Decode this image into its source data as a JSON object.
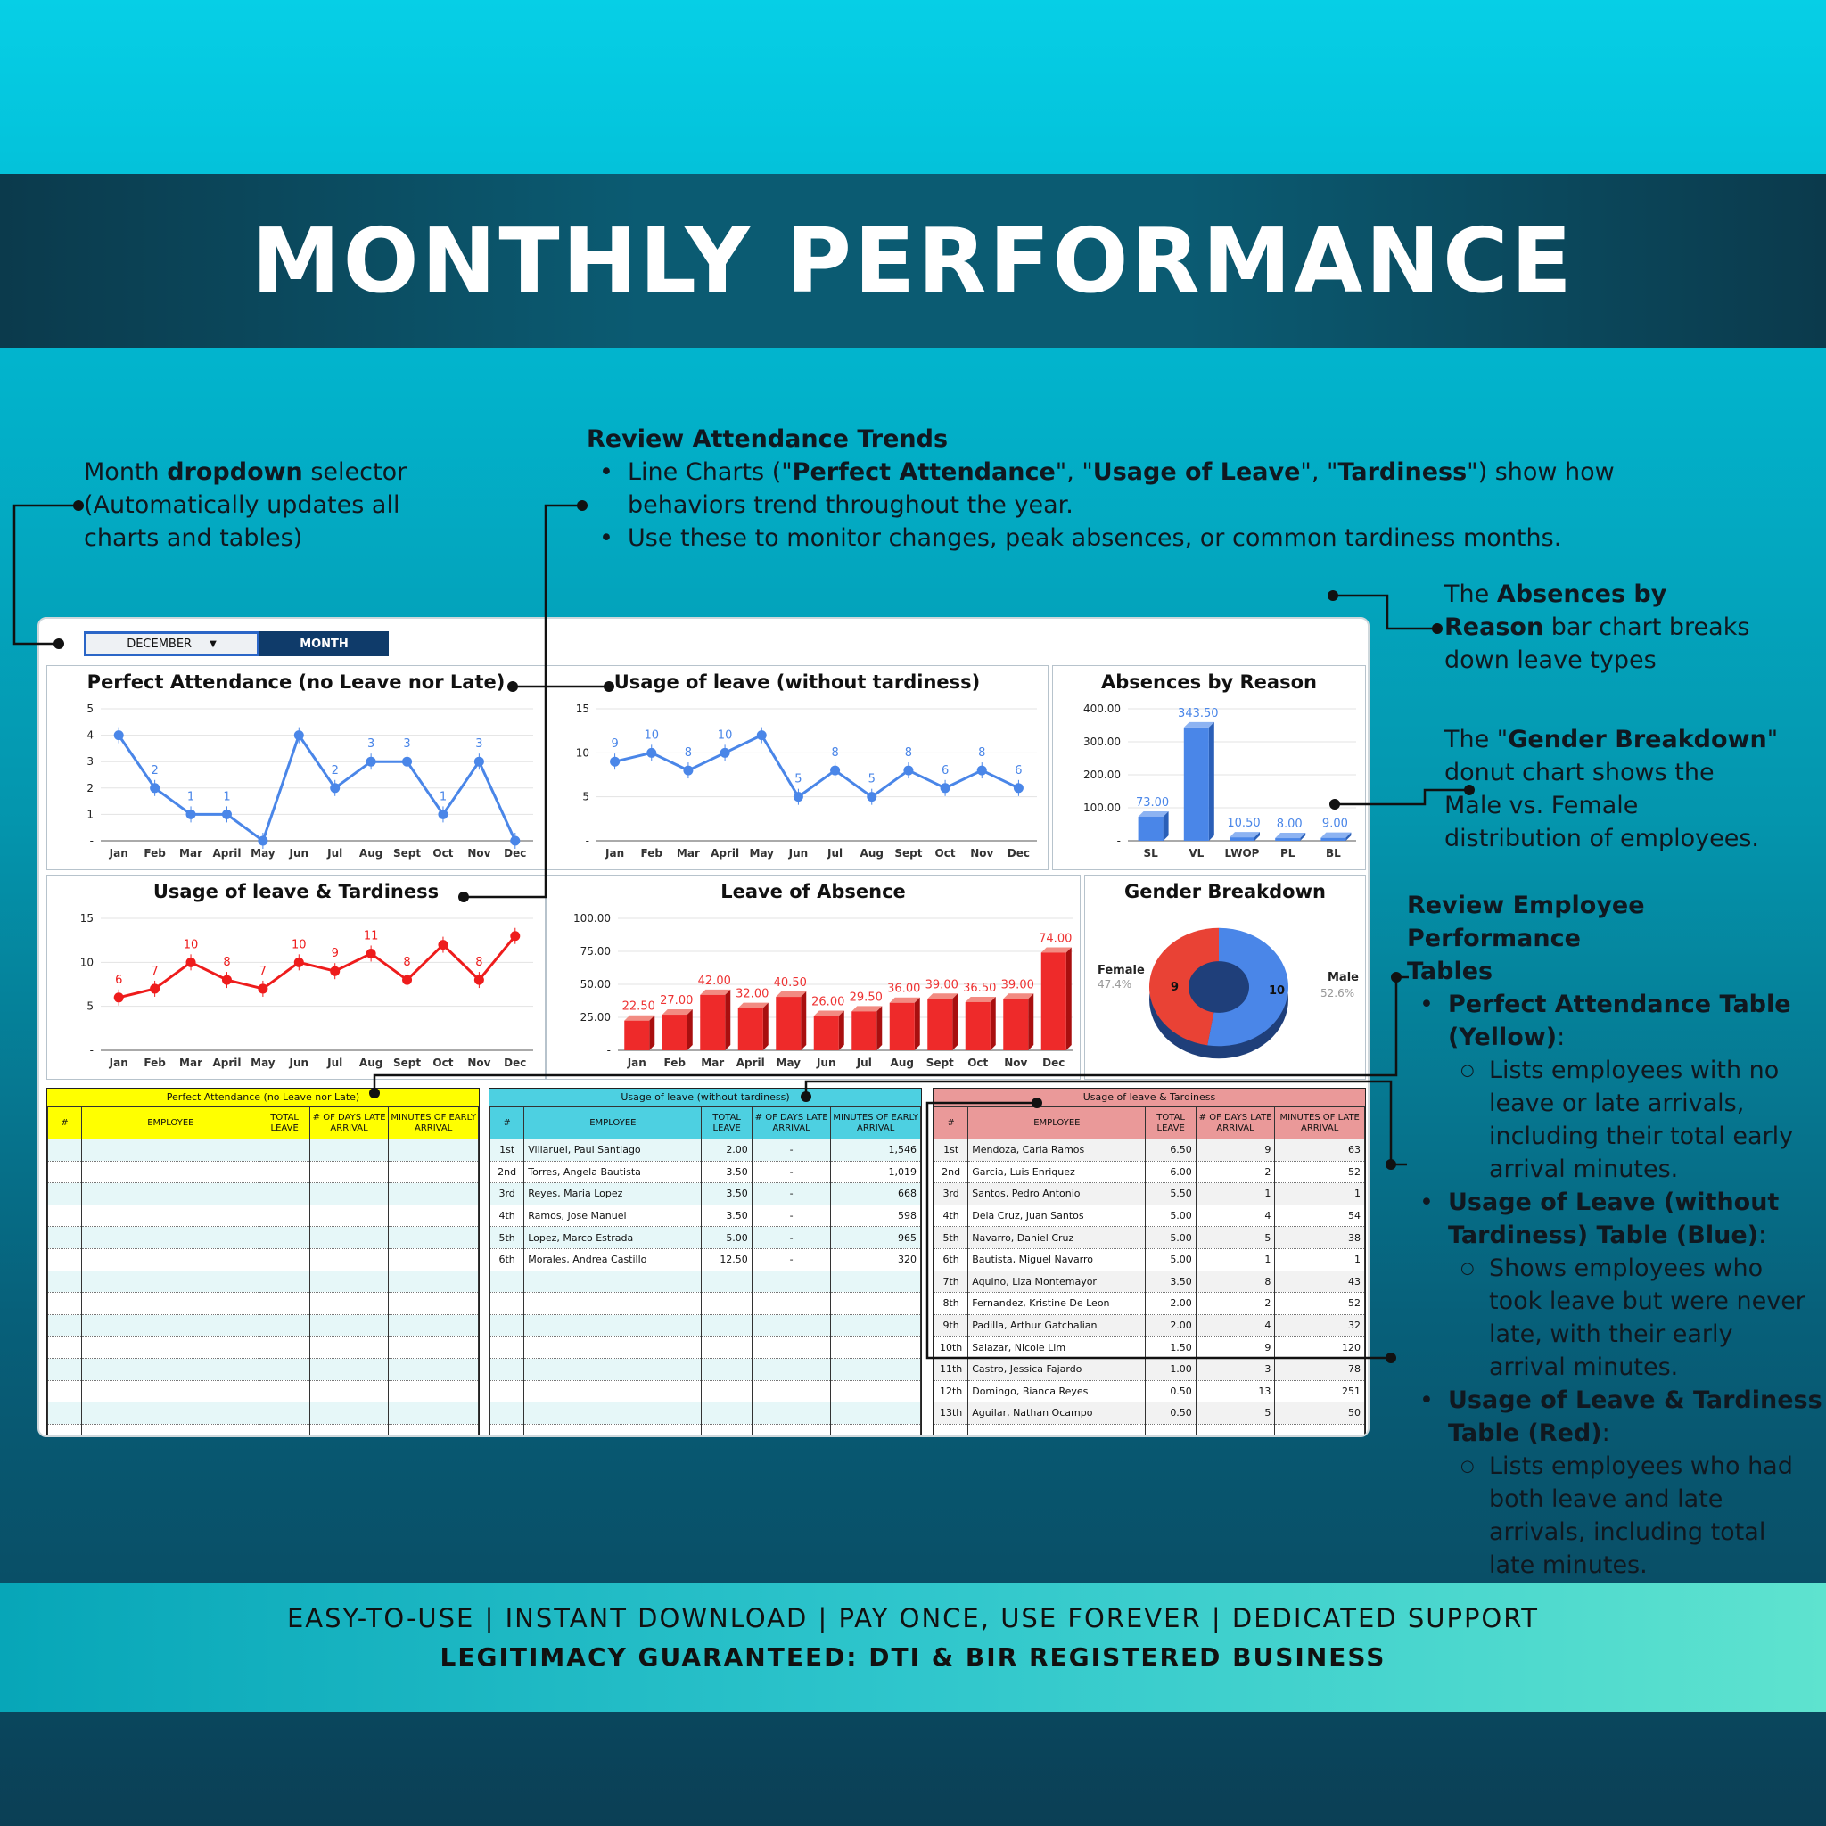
{
  "header": {
    "title": "MONTHLY PERFORMANCE"
  },
  "notes": {
    "dropdown": {
      "pre": "Month ",
      "bold": "dropdown",
      "post": " selector",
      "line2": "(Automatically updates all",
      "line3": "charts and tables)"
    },
    "trends": {
      "heading": "Review Attendance Trends",
      "b1_pre": "Line Charts (\"",
      "b1_bold1": "Perfect Attendance",
      "b1_mid1": "\", \"",
      "b1_bold2": "Usage of Leave",
      "b1_mid2": "\", \"",
      "b1_bold3": "Tardiness",
      "b1_post": "\") show how",
      "b1_line2": "behaviors trend throughout the year.",
      "b2": "Use these to monitor changes, peak absences, or common tardiness months."
    },
    "absences": {
      "pre": "The ",
      "bold1": "Absences by",
      "bold2": "Reason",
      "post": " bar chart breaks",
      "line3": "down leave types"
    },
    "gender": {
      "pre": "The \"",
      "bold": "Gender Breakdown",
      "post": "\"",
      "line2": "donut chart shows the",
      "line3": "Male vs. Female",
      "line4": "distribution of employees."
    },
    "tables": {
      "heading1": "Review Employee Performance",
      "heading2": "Tables",
      "i1_a": "Perfect Attendance Table",
      "i1_b": "(Yellow)",
      "i1_sub": [
        "Lists employees with no",
        "leave or late arrivals,",
        "including their total early",
        "arrival minutes."
      ],
      "i2_a": "Usage of Leave (without",
      "i2_b": "Tardiness) Table (Blue)",
      "i2_sub": [
        "Shows employees who",
        "took leave but were never",
        "late, with their early",
        "arrival minutes."
      ],
      "i3_a": "Usage of Leave & Tardiness",
      "i3_b": "Table (Red)",
      "i3_sub": [
        "Lists employees who had",
        "both leave and late",
        "arrivals, including total",
        "late minutes."
      ]
    }
  },
  "dashboard": {
    "month_value": "DECEMBER",
    "month_button": "MONTH",
    "titles": {
      "perfect": "Perfect Attendance (no Leave nor Late)",
      "usage": "Usage of leave (without tardiness)",
      "absences": "Absences by Reason",
      "tardy": "Usage of leave & Tardiness",
      "absence": "Leave of Absence",
      "gender": "Gender Breakdown"
    }
  },
  "chart_data": [
    {
      "type": "line",
      "title": "Perfect Attendance (no Leave nor Late)",
      "categories": [
        "Jan",
        "Feb",
        "Mar",
        "April",
        "May",
        "Jun",
        "Jul",
        "Aug",
        "Sept",
        "Oct",
        "Nov",
        "Dec"
      ],
      "values": [
        4,
        2,
        1,
        1,
        0,
        4,
        2,
        3,
        3,
        1,
        3,
        0
      ],
      "labels": [
        "",
        "2",
        "1",
        "1",
        "",
        "",
        "2",
        "3",
        "3",
        "1",
        "3",
        ""
      ],
      "yticks": [
        "5",
        "4",
        "3",
        "2",
        "1",
        "-"
      ],
      "ylim": [
        0,
        5
      ],
      "color": "#4a86e8"
    },
    {
      "type": "line",
      "title": "Usage of leave (without tardiness)",
      "categories": [
        "Jan",
        "Feb",
        "Mar",
        "April",
        "May",
        "Jun",
        "Jul",
        "Aug",
        "Sept",
        "Oct",
        "Nov",
        "Dec"
      ],
      "values": [
        9,
        10,
        8,
        10,
        12,
        5,
        8,
        5,
        8,
        6,
        8,
        6
      ],
      "labels": [
        "9",
        "10",
        "8",
        "10",
        "",
        "5",
        "8",
        "5",
        "8",
        "6",
        "8",
        "6"
      ],
      "yticks": [
        "15",
        "10",
        "5",
        "-"
      ],
      "ylim": [
        0,
        15
      ],
      "color": "#4a86e8"
    },
    {
      "type": "bar",
      "title": "Absences by Reason",
      "categories": [
        "SL",
        "VL",
        "LWOP",
        "PL",
        "BL"
      ],
      "values": [
        73.0,
        343.5,
        10.5,
        8.0,
        9.0
      ],
      "labels": [
        "73.00",
        "343.50",
        "10.50",
        "8.00",
        "9.00"
      ],
      "yticks": [
        "400.00",
        "300.00",
        "200.00",
        "100.00",
        "-"
      ],
      "ylim": [
        0,
        400
      ],
      "color": "#4a86e8"
    },
    {
      "type": "line",
      "title": "Usage of leave & Tardiness",
      "categories": [
        "Jan",
        "Feb",
        "Mar",
        "April",
        "May",
        "Jun",
        "Jul",
        "Aug",
        "Sept",
        "Oct",
        "Nov",
        "Dec"
      ],
      "values": [
        6,
        7,
        10,
        8,
        7,
        10,
        9,
        11,
        8,
        12,
        8,
        13
      ],
      "labels": [
        "6",
        "7",
        "10",
        "8",
        "7",
        "10",
        "9",
        "11",
        "8",
        "",
        "8",
        ""
      ],
      "yticks": [
        "15",
        "10",
        "5",
        "-"
      ],
      "ylim": [
        0,
        15
      ],
      "color": "#ee1c1c"
    },
    {
      "type": "bar",
      "title": "Leave of Absence",
      "categories": [
        "Jan",
        "Feb",
        "Mar",
        "April",
        "May",
        "Jun",
        "Jul",
        "Aug",
        "Sept",
        "Oct",
        "Nov",
        "Dec"
      ],
      "values": [
        22.5,
        27.0,
        42.0,
        32.0,
        40.5,
        26.0,
        29.5,
        36.0,
        39.0,
        36.5,
        39.0,
        74.0
      ],
      "labels": [
        "22.50",
        "27.00",
        "42.00",
        "32.00",
        "40.50",
        "26.00",
        "29.50",
        "36.00",
        "39.00",
        "36.50",
        "39.00",
        "74.00"
      ],
      "yticks": [
        "100.00",
        "75.00",
        "50.00",
        "25.00",
        "-"
      ],
      "ylim": [
        0,
        100
      ],
      "color": "#ee2a2a"
    },
    {
      "type": "pie",
      "title": "Gender Breakdown",
      "categories": [
        "Female",
        "Male"
      ],
      "values": [
        9,
        10
      ],
      "percent_labels": [
        "47.4%",
        "52.6%"
      ],
      "colors": [
        "#e94235",
        "#4a86e8"
      ]
    }
  ],
  "tables": {
    "headers": [
      "#",
      "EMPLOYEE",
      "TOTAL LEAVE",
      "# OF DAYS LATE ARRIVAL"
    ],
    "yellow": {
      "caption": "Perfect Attendance (no Leave nor Late)",
      "last_header": "MINUTES OF EARLY ARRIVAL",
      "rows": []
    },
    "blue": {
      "caption": "Usage of leave (without tardiness)",
      "last_header": "MINUTES OF EARLY ARRIVAL",
      "rows": [
        [
          "1st",
          "Villaruel, Paul Santiago",
          "2.00",
          "-",
          "1,546"
        ],
        [
          "2nd",
          "Torres, Angela Bautista",
          "3.50",
          "-",
          "1,019"
        ],
        [
          "3rd",
          "Reyes, Maria Lopez",
          "3.50",
          "-",
          "668"
        ],
        [
          "4th",
          "Ramos, Jose Manuel",
          "3.50",
          "-",
          "598"
        ],
        [
          "5th",
          "Lopez, Marco Estrada",
          "5.00",
          "-",
          "965"
        ],
        [
          "6th",
          "Morales, Andrea Castillo",
          "12.50",
          "-",
          "320"
        ]
      ]
    },
    "red": {
      "caption": "Usage of leave & Tardiness",
      "last_header": "MINUTES OF LATE ARRIVAL",
      "rows": [
        [
          "1st",
          "Mendoza, Carla Ramos",
          "6.50",
          "9",
          "63"
        ],
        [
          "2nd",
          "Garcia, Luis Enriquez",
          "6.00",
          "2",
          "52"
        ],
        [
          "3rd",
          "Santos, Pedro Antonio",
          "5.50",
          "1",
          "1"
        ],
        [
          "4th",
          "Dela Cruz, Juan Santos",
          "5.00",
          "4",
          "54"
        ],
        [
          "5th",
          "Navarro, Daniel Cruz",
          "5.00",
          "5",
          "38"
        ],
        [
          "6th",
          "Bautista, Miguel Navarro",
          "5.00",
          "1",
          "1"
        ],
        [
          "7th",
          "Aquino, Liza Montemayor",
          "3.50",
          "8",
          "43"
        ],
        [
          "8th",
          "Fernandez, Kristine De Leon",
          "2.00",
          "2",
          "52"
        ],
        [
          "9th",
          "Padilla, Arthur Gatchalian",
          "2.00",
          "4",
          "32"
        ],
        [
          "10th",
          "Salazar, Nicole Lim",
          "1.50",
          "9",
          "120"
        ],
        [
          "11th",
          "Castro, Jessica Fajardo",
          "1.00",
          "3",
          "78"
        ],
        [
          "12th",
          "Domingo, Bianca Reyes",
          "0.50",
          "13",
          "251"
        ],
        [
          "13th",
          "Aguilar, Nathan Ocampo",
          "0.50",
          "5",
          "50"
        ]
      ]
    }
  },
  "footer": {
    "line1": "EASY-TO-USE | INSTANT DOWNLOAD | PAY ONCE, USE FOREVER | DEDICATED SUPPORT",
    "line2": "LEGITIMACY GUARANTEED: DTI & BIR REGISTERED BUSINESS"
  }
}
